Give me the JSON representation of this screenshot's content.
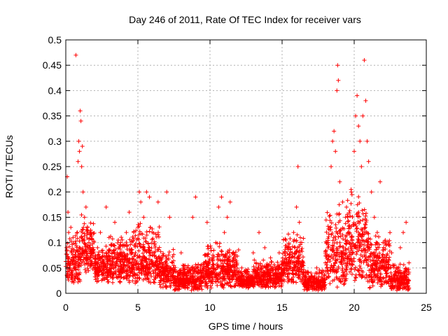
{
  "chart_data": {
    "type": "scatter",
    "title": "Day 246 of 2011, Rate Of TEC Index for receiver vars",
    "xlabel": "GPS time / hours",
    "ylabel": "ROTI / TECUs",
    "xlim": [
      0,
      25
    ],
    "ylim": [
      0,
      0.5
    ],
    "xticks": [
      0,
      5,
      10,
      15,
      20,
      25
    ],
    "xtick_labels": [
      "0",
      "5",
      "10",
      "15",
      "20",
      "25"
    ],
    "yticks": [
      0,
      0.05,
      0.1,
      0.15,
      0.2,
      0.25,
      0.3,
      0.35,
      0.4,
      0.45,
      0.5
    ],
    "ytick_labels": [
      "0",
      "0.05",
      "0.1",
      "0.15",
      "0.2",
      "0.25",
      "0.3",
      "0.35",
      "0.4",
      "0.45",
      "0.5"
    ],
    "grid": true,
    "marker": "+",
    "color": "#ff0000",
    "series": [
      {
        "name": "ROTI",
        "points": [
          [
            0.05,
            0.09
          ],
          [
            0.1,
            0.23
          ],
          [
            0.15,
            0.16
          ],
          [
            0.2,
            0.12
          ],
          [
            0.3,
            0.06
          ],
          [
            0.35,
            0.13
          ],
          [
            0.4,
            0.08
          ],
          [
            0.5,
            0.11
          ],
          [
            0.6,
            0.05
          ],
          [
            0.7,
            0.47
          ],
          [
            0.8,
            0.12
          ],
          [
            0.85,
            0.26
          ],
          [
            0.9,
            0.3
          ],
          [
            0.95,
            0.28
          ],
          [
            1.0,
            0.36
          ],
          [
            1.05,
            0.34
          ],
          [
            1.1,
            0.25
          ],
          [
            1.15,
            0.29
          ],
          [
            1.2,
            0.2
          ],
          [
            1.3,
            0.15
          ],
          [
            1.4,
            0.17
          ],
          [
            1.5,
            0.13
          ],
          [
            1.6,
            0.1
          ],
          [
            1.7,
            0.08
          ],
          [
            1.8,
            0.12
          ],
          [
            1.9,
            0.07
          ],
          [
            2.0,
            0.05
          ],
          [
            2.2,
            0.09
          ],
          [
            2.4,
            0.12
          ],
          [
            2.6,
            0.06
          ],
          [
            2.8,
            0.17
          ],
          [
            3.0,
            0.11
          ],
          [
            3.2,
            0.08
          ],
          [
            3.4,
            0.14
          ],
          [
            3.6,
            0.07
          ],
          [
            3.8,
            0.1
          ],
          [
            4.0,
            0.05
          ],
          [
            4.2,
            0.12
          ],
          [
            4.4,
            0.16
          ],
          [
            4.6,
            0.08
          ],
          [
            4.8,
            0.06
          ],
          [
            5.0,
            0.13
          ],
          [
            5.1,
            0.2
          ],
          [
            5.2,
            0.18
          ],
          [
            5.4,
            0.15
          ],
          [
            5.6,
            0.2
          ],
          [
            5.8,
            0.19
          ],
          [
            6.0,
            0.12
          ],
          [
            6.2,
            0.09
          ],
          [
            6.4,
            0.18
          ],
          [
            6.6,
            0.07
          ],
          [
            6.8,
            0.05
          ],
          [
            7.0,
            0.2
          ],
          [
            7.2,
            0.15
          ],
          [
            7.4,
            0.06
          ],
          [
            7.6,
            0.03
          ],
          [
            7.8,
            0.04
          ],
          [
            8.0,
            0.08
          ],
          [
            8.2,
            0.02
          ],
          [
            8.4,
            0.05
          ],
          [
            8.6,
            0.03
          ],
          [
            8.8,
            0.15
          ],
          [
            9.0,
            0.19
          ],
          [
            9.2,
            0.04
          ],
          [
            9.4,
            0.02
          ],
          [
            9.6,
            0.06
          ],
          [
            9.8,
            0.14
          ],
          [
            10.0,
            0.03
          ],
          [
            10.2,
            0.05
          ],
          [
            10.4,
            0.1
          ],
          [
            10.6,
            0.17
          ],
          [
            10.8,
            0.19
          ],
          [
            11.0,
            0.12
          ],
          [
            11.2,
            0.15
          ],
          [
            11.4,
            0.18
          ],
          [
            11.6,
            0.08
          ],
          [
            11.8,
            0.06
          ],
          [
            12.0,
            0.03
          ],
          [
            12.2,
            0.05
          ],
          [
            12.4,
            0.02
          ],
          [
            12.6,
            0.04
          ],
          [
            12.8,
            0.03
          ],
          [
            13.0,
            0.08
          ],
          [
            13.2,
            0.06
          ],
          [
            13.4,
            0.12
          ],
          [
            13.6,
            0.05
          ],
          [
            13.8,
            0.09
          ],
          [
            14.0,
            0.04
          ],
          [
            14.2,
            0.07
          ],
          [
            14.4,
            0.03
          ],
          [
            14.6,
            0.05
          ],
          [
            14.8,
            0.08
          ],
          [
            15.0,
            0.04
          ],
          [
            15.2,
            0.06
          ],
          [
            15.4,
            0.09
          ],
          [
            15.6,
            0.05
          ],
          [
            15.8,
            0.12
          ],
          [
            16.0,
            0.17
          ],
          [
            16.1,
            0.25
          ],
          [
            16.2,
            0.14
          ],
          [
            16.4,
            0.06
          ],
          [
            16.6,
            0.03
          ],
          [
            16.8,
            0.02
          ],
          [
            17.0,
            0.04
          ],
          [
            17.2,
            0.03
          ],
          [
            17.4,
            0.05
          ],
          [
            17.6,
            0.02
          ],
          [
            17.8,
            0.04
          ],
          [
            18.0,
            0.06
          ],
          [
            18.2,
            0.1
          ],
          [
            18.4,
            0.25
          ],
          [
            18.5,
            0.3
          ],
          [
            18.6,
            0.32
          ],
          [
            18.7,
            0.28
          ],
          [
            18.8,
            0.4
          ],
          [
            18.85,
            0.45
          ],
          [
            18.9,
            0.42
          ],
          [
            19.0,
            0.22
          ],
          [
            19.2,
            0.18
          ],
          [
            19.4,
            0.15
          ],
          [
            19.6,
            0.12
          ],
          [
            19.8,
            0.2
          ],
          [
            20.0,
            0.28
          ],
          [
            20.1,
            0.35
          ],
          [
            20.2,
            0.39
          ],
          [
            20.3,
            0.33
          ],
          [
            20.4,
            0.3
          ],
          [
            20.5,
            0.25
          ],
          [
            20.6,
            0.35
          ],
          [
            20.7,
            0.46
          ],
          [
            20.8,
            0.38
          ],
          [
            20.9,
            0.3
          ],
          [
            21.0,
            0.26
          ],
          [
            21.2,
            0.2
          ],
          [
            21.4,
            0.15
          ],
          [
            21.6,
            0.12
          ],
          [
            21.8,
            0.22
          ],
          [
            22.0,
            0.1
          ],
          [
            22.2,
            0.07
          ],
          [
            22.4,
            0.05
          ],
          [
            22.6,
            0.08
          ],
          [
            22.8,
            0.03
          ],
          [
            23.0,
            0.05
          ],
          [
            23.2,
            0.09
          ],
          [
            23.4,
            0.12
          ],
          [
            23.6,
            0.14
          ],
          [
            23.8,
            0.06
          ]
        ]
      }
    ],
    "dense_bands": [
      [
        0.0,
        1.0,
        0.02,
        0.12
      ],
      [
        1.0,
        2.0,
        0.04,
        0.16
      ],
      [
        2.0,
        3.0,
        0.02,
        0.1
      ],
      [
        3.0,
        4.5,
        0.02,
        0.12
      ],
      [
        4.5,
        6.5,
        0.02,
        0.14
      ],
      [
        6.5,
        7.5,
        0.01,
        0.09
      ],
      [
        7.5,
        9.5,
        0.005,
        0.06
      ],
      [
        9.5,
        12.0,
        0.01,
        0.1
      ],
      [
        12.0,
        13.0,
        0.01,
        0.05
      ],
      [
        13.0,
        15.0,
        0.01,
        0.07
      ],
      [
        15.0,
        16.5,
        0.02,
        0.12
      ],
      [
        16.5,
        18.0,
        0.005,
        0.05
      ],
      [
        18.0,
        19.5,
        0.01,
        0.18
      ],
      [
        19.5,
        21.0,
        0.02,
        0.22
      ],
      [
        21.0,
        22.5,
        0.01,
        0.12
      ],
      [
        22.5,
        23.8,
        0.005,
        0.06
      ]
    ]
  }
}
